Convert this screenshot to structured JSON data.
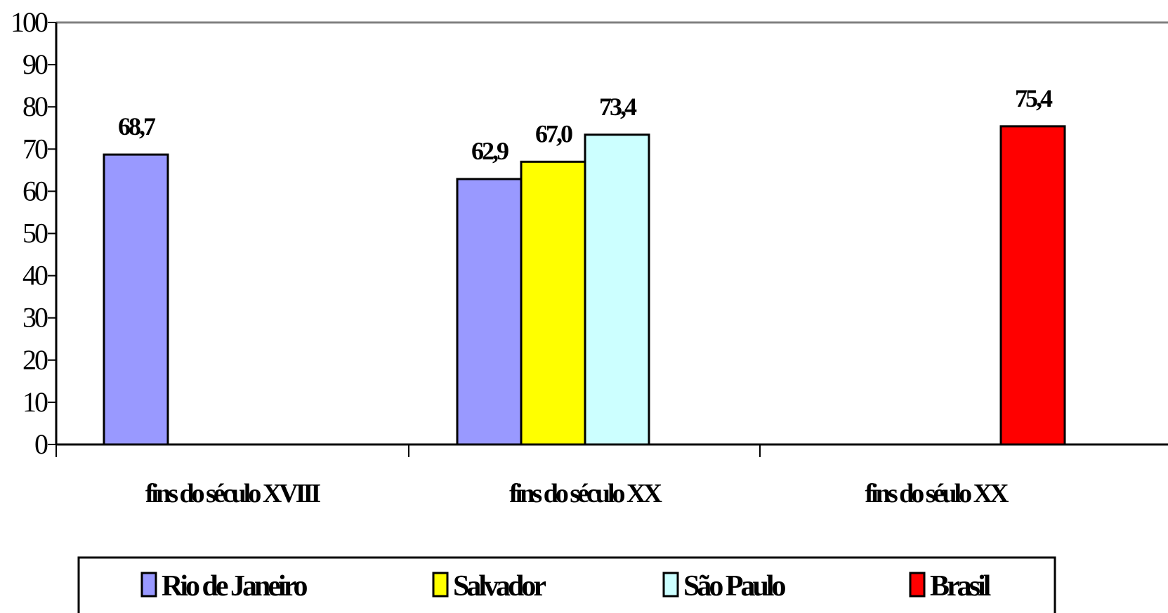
{
  "chart_data": {
    "type": "bar",
    "categories": [
      "fins do século XVIII",
      "fins do século XX",
      "fins do séulo XX"
    ],
    "series": [
      {
        "name": "Rio de Janeiro",
        "color": "#9999ff",
        "values": [
          68.7,
          62.9,
          null
        ]
      },
      {
        "name": "Salvador",
        "color": "#ffff00",
        "values": [
          null,
          67.0,
          null
        ]
      },
      {
        "name": "São Paulo",
        "color": "#ccffff",
        "values": [
          null,
          73.4,
          null
        ]
      },
      {
        "name": "Brasil",
        "color": "#ff0000",
        "values": [
          null,
          null,
          75.4
        ]
      }
    ],
    "bars": [
      {
        "category": 0,
        "series": 0,
        "value": 68.7,
        "label": "68,7"
      },
      {
        "category": 1,
        "series": 0,
        "value": 62.9,
        "label": "62,9"
      },
      {
        "category": 1,
        "series": 1,
        "value": 67.0,
        "label": "67,0"
      },
      {
        "category": 1,
        "series": 2,
        "value": 73.4,
        "label": "73,4"
      },
      {
        "category": 2,
        "series": 3,
        "value": 75.4,
        "label": "75,4"
      }
    ],
    "y_ticks": [
      "0",
      "10",
      "20",
      "30",
      "40",
      "50",
      "60",
      "70",
      "80",
      "90",
      "100"
    ],
    "ylim": [
      0,
      100
    ],
    "legend_position": "bottom",
    "grid": false,
    "title": "",
    "xlabel": "",
    "ylabel": ""
  }
}
